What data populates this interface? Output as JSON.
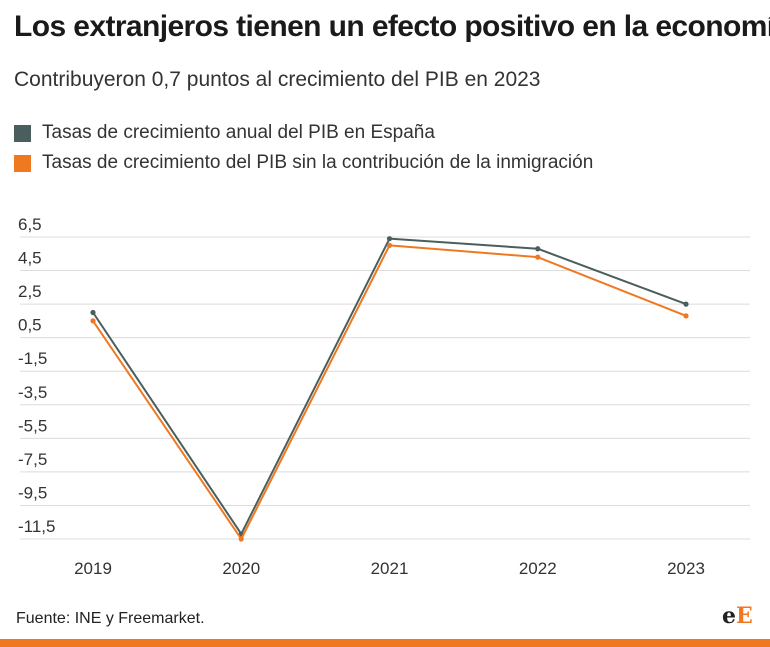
{
  "header": {
    "title": "Los extranjeros tienen un efecto positivo en la economía",
    "subtitle": "Contribuyeron 0,7 puntos al crecimiento del PIB en 2023"
  },
  "footer": {
    "source": "Fuente: INE y Freemarket.",
    "logo_text_1": "e",
    "logo_text_2": "E"
  },
  "colors": {
    "series_1": "#4a5f5d",
    "series_2": "#f07820",
    "accent": "#f07820"
  },
  "chart_data": {
    "type": "line",
    "title": "Los extranjeros tienen un efecto positivo en la economía",
    "subtitle": "Contribuyeron 0,7 puntos al crecimiento del PIB en 2023",
    "xlabel": "",
    "ylabel": "",
    "categories": [
      "2019",
      "2020",
      "2021",
      "2022",
      "2023"
    ],
    "y_ticks": [
      6.5,
      4.5,
      2.5,
      0.5,
      -1.5,
      -3.5,
      -5.5,
      -7.5,
      -9.5,
      -11.5
    ],
    "y_tick_labels": [
      "6,5",
      "4,5",
      "2,5",
      "0,5",
      "-1,5",
      "-3,5",
      "-5,5",
      "-7,5",
      "-9,5",
      "-11,5"
    ],
    "ylim": [
      -12.5,
      6.5
    ],
    "grid": true,
    "legend_position": "top-left",
    "series": [
      {
        "name": "Tasas de crecimiento anual del PIB en España",
        "color": "#4a5f5d",
        "values": [
          2.0,
          -11.2,
          6.4,
          5.8,
          2.5
        ]
      },
      {
        "name": "Tasas de crecimiento del PIB sin la contribución de la inmigración",
        "color": "#f07820",
        "values": [
          1.5,
          -11.5,
          6.0,
          5.3,
          1.8
        ]
      }
    ]
  }
}
